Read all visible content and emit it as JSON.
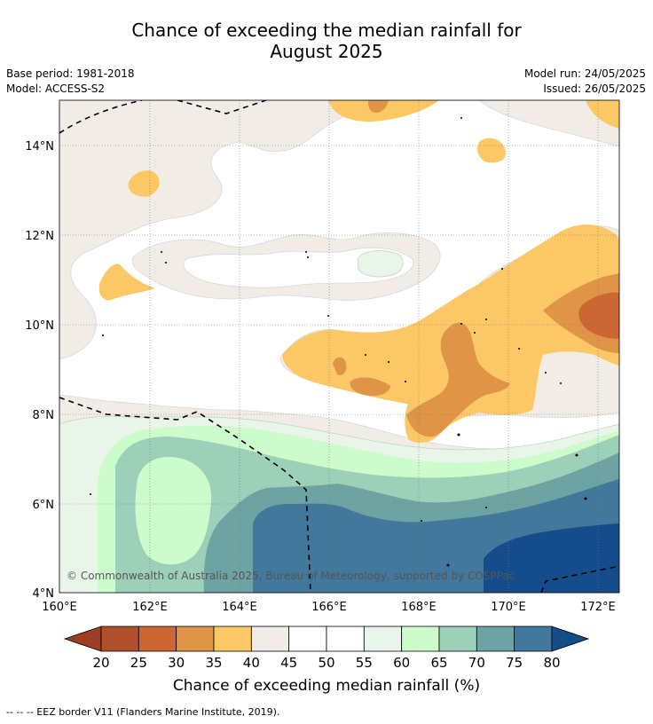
{
  "title_line1": "Chance of exceeding the median rainfall for",
  "title_line2": "August 2025",
  "base_period": "Base period: 1981-2018",
  "model": "Model: ACCESS-S2",
  "model_run": "Model run: 24/05/2025",
  "issued": "Issued: 26/05/2025",
  "copyright": "© Commonwealth of Australia 2025, Bureau of Meteorology, supported by COSPPac",
  "footer": "-- -- -- EEZ border V11 (Flanders Marine Institute, 2019).",
  "x_ticks": [
    "160°E",
    "162°E",
    "164°E",
    "166°E",
    "168°E",
    "170°E",
    "172°E"
  ],
  "y_ticks": [
    "14°N",
    "12°N",
    "10°N",
    "8°N",
    "6°N",
    "4°N"
  ],
  "colorbar": {
    "title": "Chance of exceeding median rainfall (%)",
    "ticks": [
      "20",
      "25",
      "30",
      "35",
      "40",
      "45",
      "50",
      "55",
      "60",
      "65",
      "70",
      "75",
      "80"
    ],
    "colors": [
      "#9c3d24",
      "#b04f2b",
      "#cc6633",
      "#e09448",
      "#fcc865",
      "#f1ece6",
      "#ffffff",
      "#ffffff",
      "#eaf5ea",
      "#ccfccc",
      "#9dd0b9",
      "#6ea3a4",
      "#41789c",
      "#144c8c"
    ]
  }
}
